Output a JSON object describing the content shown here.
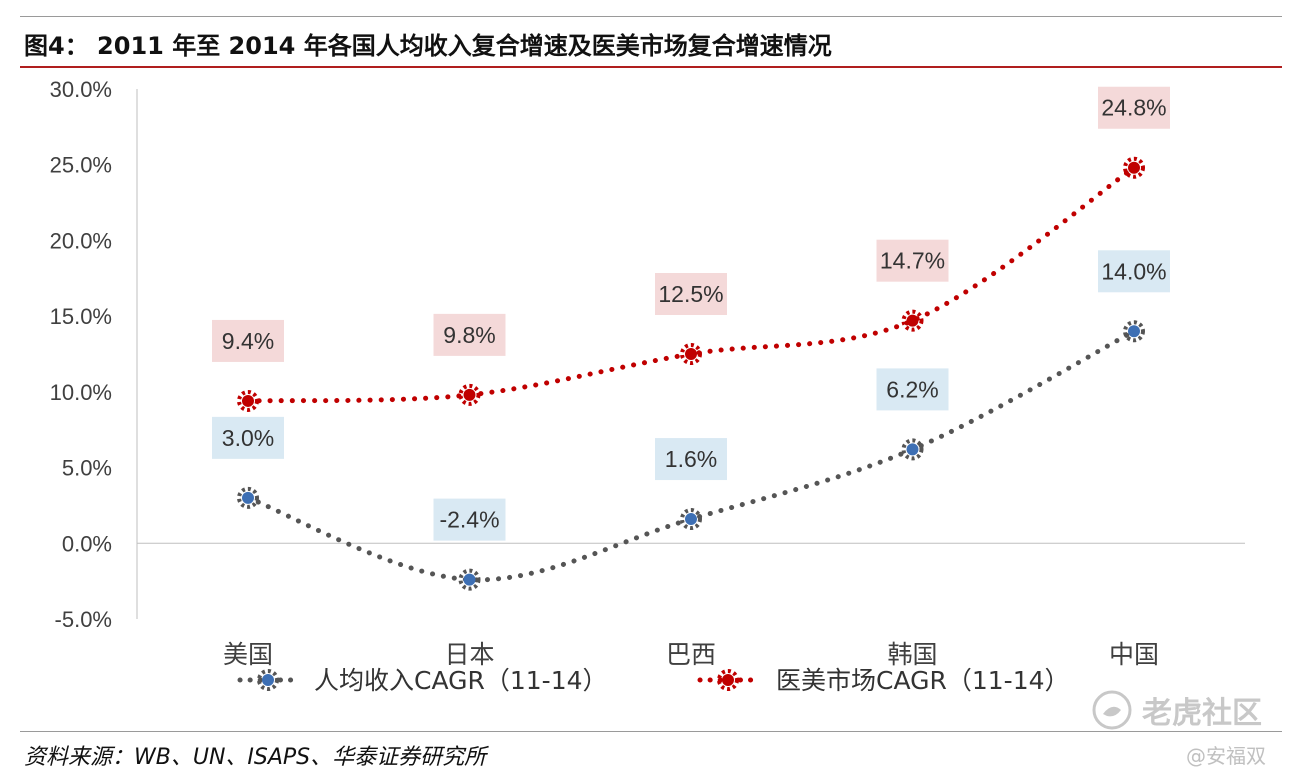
{
  "figure": {
    "title": "图4：  2011 年至 2014 年各国人均收入复合增速及医美市场复合增速情况",
    "source": "资料来源：WB、UN、ISAPS、华泰证券研究所"
  },
  "watermark": {
    "brand": "老虎社区",
    "user": "@安福双"
  },
  "colors": {
    "income": "#555555",
    "income_marker": "#3d6fb4",
    "income_label_bg": "#d9e9f3",
    "medical": "#c00000",
    "medical_label_bg": "#f4d9d9",
    "title_rule": "#b01e1e"
  },
  "chart_data": {
    "type": "line",
    "categories": [
      "美国",
      "日本",
      "巴西",
      "韩国",
      "中国"
    ],
    "ylim": [
      -0.05,
      0.3
    ],
    "yticks": [
      "-5.0%",
      "0.0%",
      "5.0%",
      "10.0%",
      "15.0%",
      "20.0%",
      "25.0%",
      "30.0%"
    ],
    "grid": false,
    "legend": "bottom",
    "series": [
      {
        "name": "人均收入CAGR（11-14）",
        "values": [
          0.03,
          -0.024,
          0.016,
          0.062,
          0.14
        ],
        "labels": [
          "3.0%",
          "-2.4%",
          "1.6%",
          "6.2%",
          "14.0%"
        ],
        "style": "dotted-smooth"
      },
      {
        "name": "医美市场CAGR（11-14）",
        "values": [
          0.094,
          0.098,
          0.125,
          0.147,
          0.248
        ],
        "labels": [
          "9.4%",
          "9.8%",
          "12.5%",
          "14.7%",
          "24.8%"
        ],
        "style": "dotted-smooth"
      }
    ]
  }
}
